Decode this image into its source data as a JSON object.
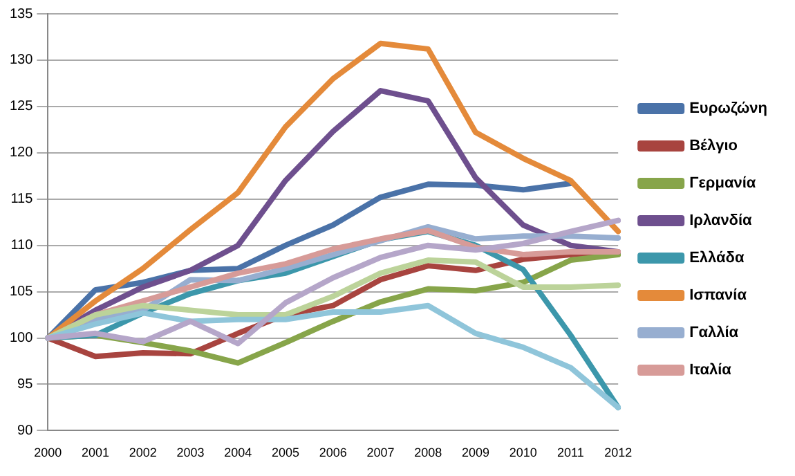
{
  "chart_data": {
    "type": "line",
    "categories": [
      "2000",
      "2001",
      "2002",
      "2003",
      "2004",
      "2005",
      "2006",
      "2007",
      "2008",
      "2009",
      "2010",
      "2011",
      "2012"
    ],
    "ylim": [
      90,
      135
    ],
    "yticks": [
      90,
      95,
      100,
      105,
      110,
      115,
      120,
      125,
      130,
      135
    ],
    "grid": "y",
    "legend": "right",
    "marker": "none",
    "line_style": "solid",
    "series": [
      {
        "name": "Ευρωζώνη",
        "color": "#4a72a8",
        "values": [
          100,
          105.2,
          106,
          107.3,
          107.5,
          110,
          112.2,
          115.2,
          116.6,
          116.5,
          116,
          116.7,
          null
        ]
      },
      {
        "name": "Βέλγιο",
        "color": "#a8443f",
        "values": [
          100,
          98,
          98.4,
          98.3,
          100.5,
          102.5,
          103.5,
          106.3,
          107.8,
          107.3,
          108.5,
          109,
          109.2
        ]
      },
      {
        "name": "Γερμανία",
        "color": "#87a54a",
        "values": [
          100,
          100.3,
          99.5,
          98.6,
          97.3,
          99.5,
          101.8,
          103.9,
          105.3,
          105.1,
          106,
          108.4,
          109
        ]
      },
      {
        "name": "Ιρλανδία",
        "color": "#6e4f8e",
        "values": [
          100,
          103,
          105.5,
          107.3,
          110,
          117,
          122.3,
          126.7,
          125.6,
          117.3,
          112.2,
          110,
          109.3
        ]
      },
      {
        "name": "Ελλάδα",
        "color": "#3c97ab",
        "values": [
          100,
          100.3,
          102.7,
          104.8,
          106.2,
          107,
          108.8,
          110.6,
          111.5,
          110,
          107.4,
          100.3,
          92.5
        ]
      },
      {
        "name": "Ισπανία",
        "color": "#e48a3a",
        "values": [
          100,
          104,
          107.5,
          111.7,
          115.7,
          122.8,
          128,
          131.8,
          131.2,
          122.2,
          119.4,
          117,
          111.5
        ]
      },
      {
        "name": "Γαλλία",
        "color": "#97aed0",
        "values": [
          100,
          102,
          103,
          106.3,
          106.2,
          107.5,
          109,
          110.5,
          112,
          110.7,
          111,
          111,
          110.8
        ]
      },
      {
        "name": "Ιταλία",
        "color": "#d79b98",
        "values": [
          100,
          102.5,
          104,
          105.5,
          107,
          108,
          109.6,
          110.7,
          111.6,
          109.8,
          109,
          109.3,
          109.3
        ]
      },
      {
        "color": "#bcd39a",
        "values": [
          100,
          102.5,
          103.5,
          103,
          102.5,
          102.5,
          104.5,
          107,
          108.4,
          108.2,
          105.5,
          105.5,
          105.7
        ]
      },
      {
        "color": "#8fc5da",
        "values": [
          100,
          101.5,
          102.7,
          101.8,
          102,
          102,
          102.8,
          102.8,
          103.5,
          100.5,
          99,
          96.8,
          92.5
        ]
      },
      {
        "color": "#b5a6c9",
        "values": [
          100,
          100.5,
          99.6,
          101.8,
          99.4,
          103.8,
          106.5,
          108.7,
          110,
          109.5,
          110.2,
          111.5,
          112.7
        ]
      }
    ]
  }
}
